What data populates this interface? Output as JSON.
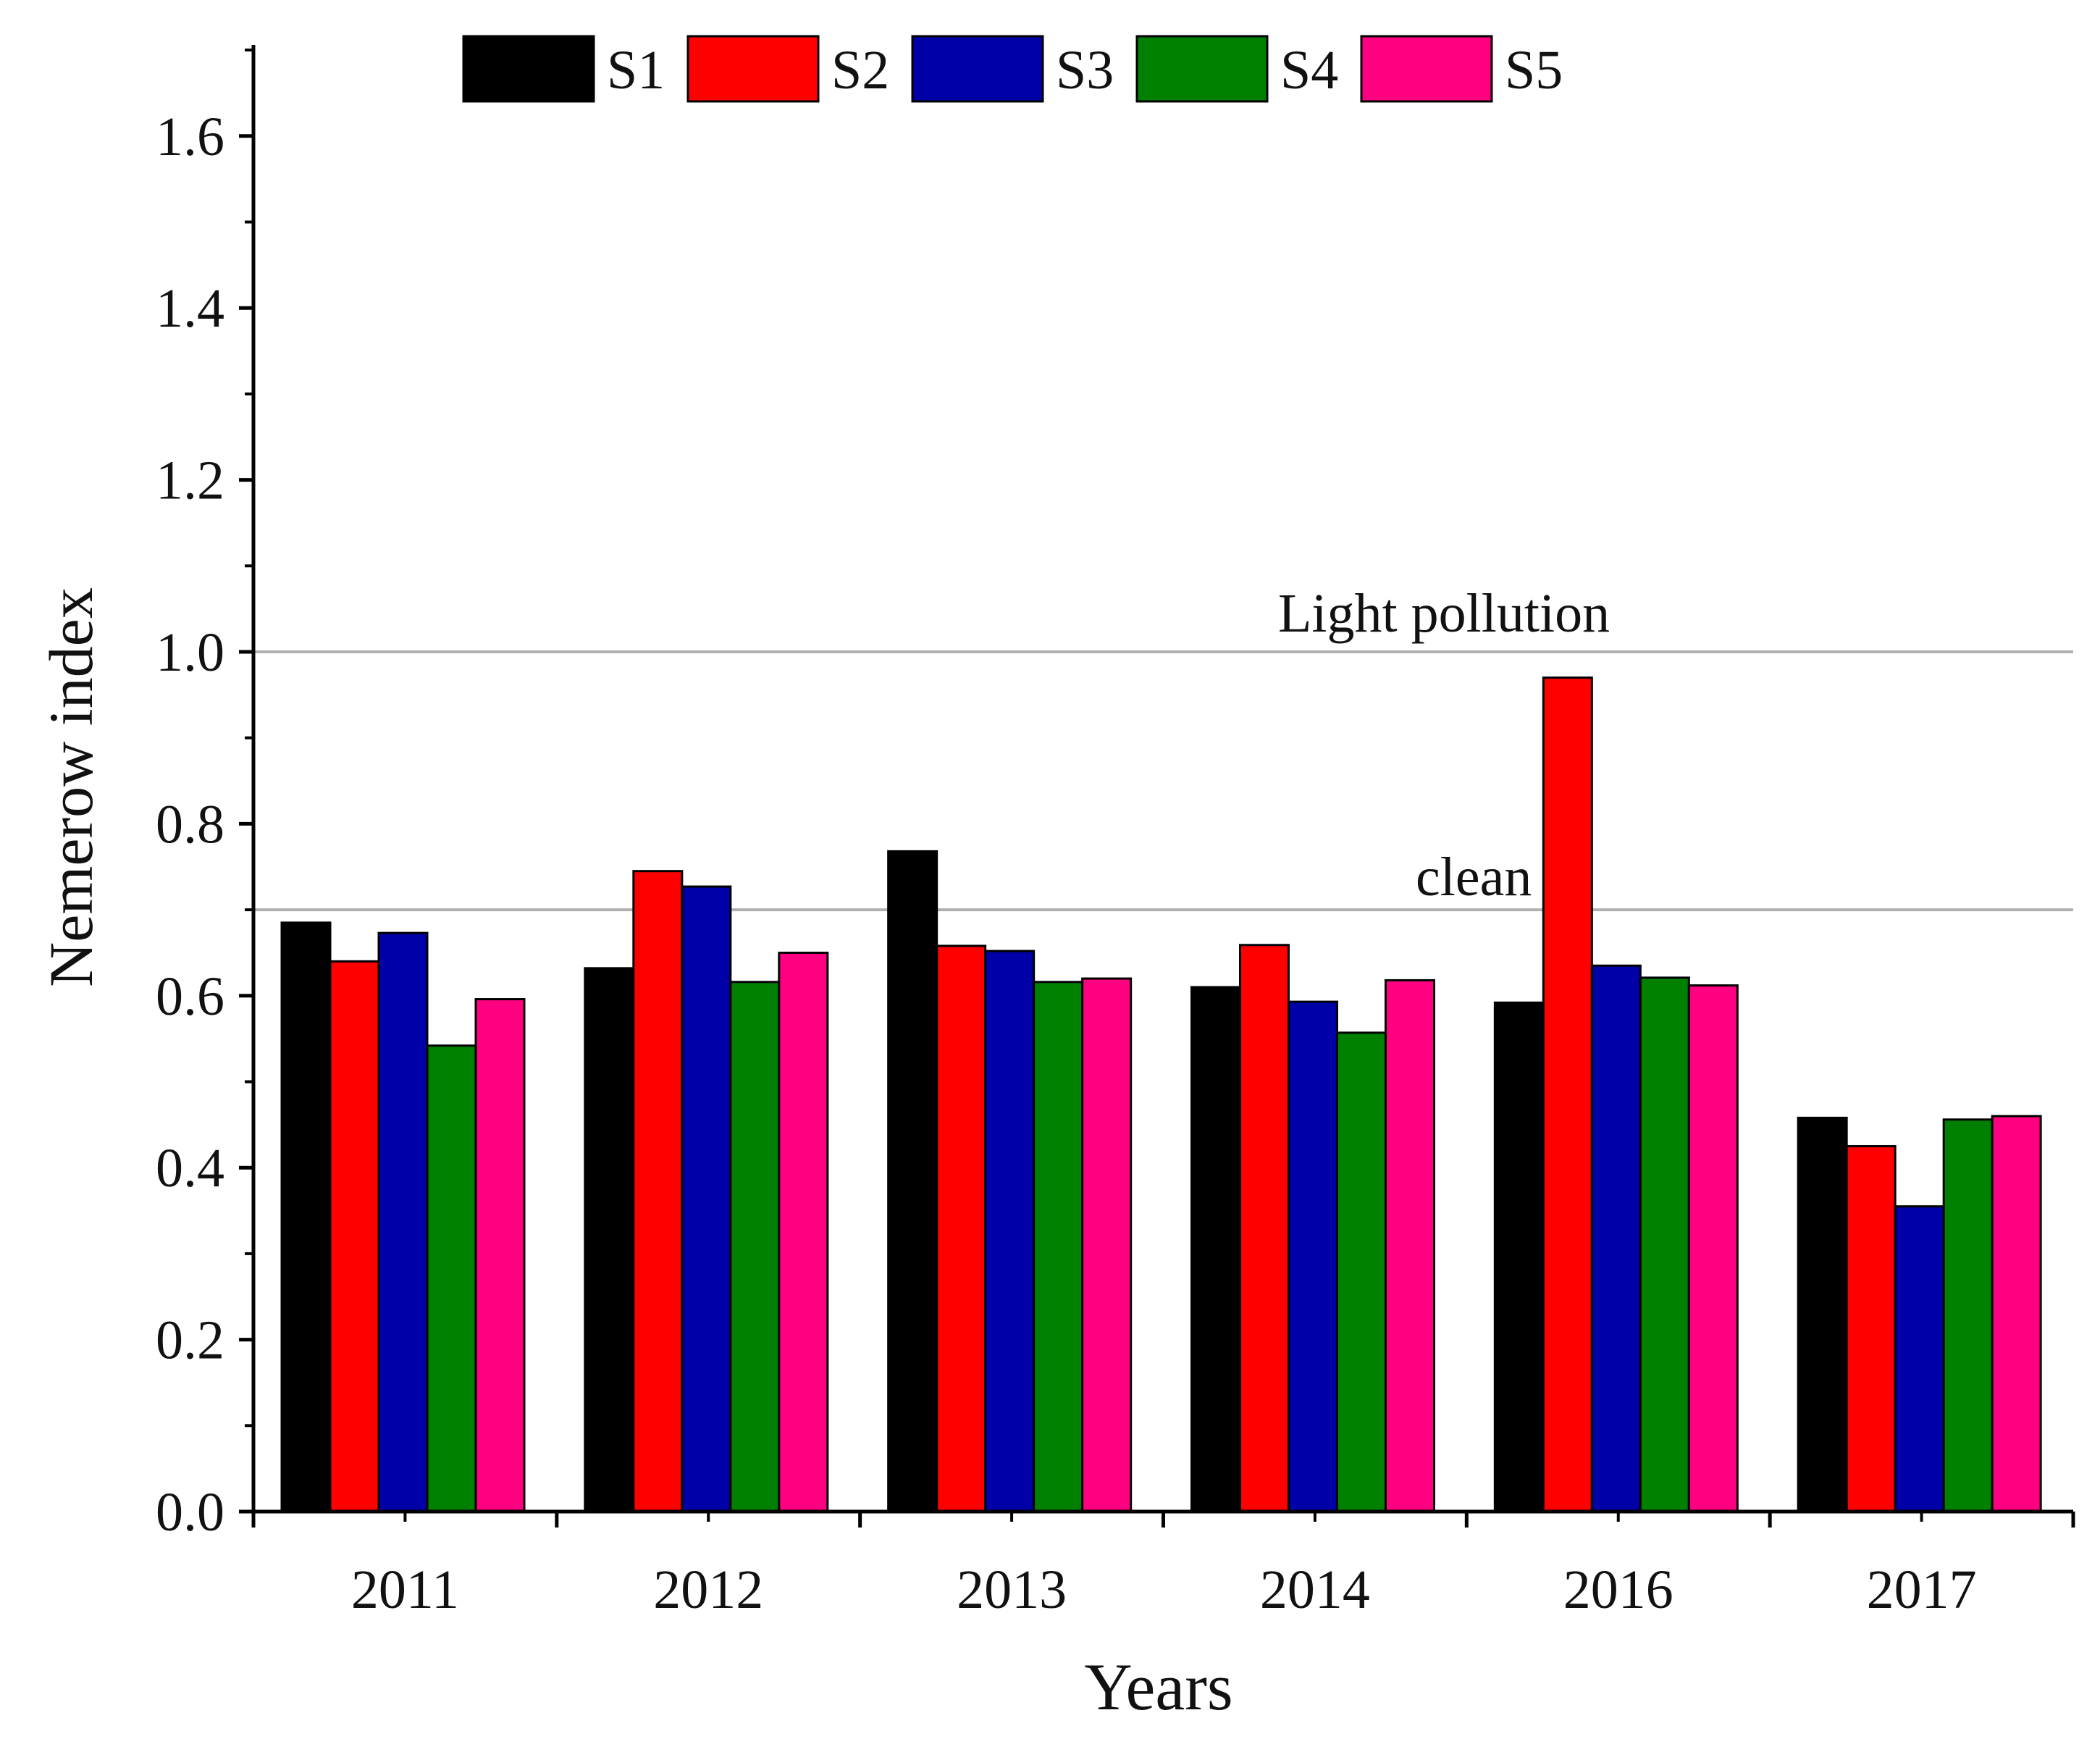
{
  "chart_data": {
    "type": "bar",
    "title": "",
    "xlabel": "Years",
    "ylabel": "Nemerow index",
    "categories": [
      "2011",
      "2012",
      "2013",
      "2014",
      "2016",
      "2017"
    ],
    "ylim": [
      0.0,
      1.7
    ],
    "yticks": [
      0.0,
      0.2,
      0.4,
      0.6,
      0.8,
      1.0,
      1.2,
      1.4,
      1.6
    ],
    "ytick_labels": [
      "0.0",
      "0.2",
      "0.4",
      "0.6",
      "0.8",
      "1.0",
      "1.2",
      "1.4",
      "1.6"
    ],
    "grid": false,
    "legend_position": "top",
    "series": [
      {
        "name": "S1",
        "color": "#000000",
        "values": [
          0.685,
          0.632,
          0.768,
          0.61,
          0.592,
          0.458
        ]
      },
      {
        "name": "S2",
        "color": "#ff0000",
        "values": [
          0.64,
          0.745,
          0.658,
          0.659,
          0.97,
          0.425
        ]
      },
      {
        "name": "S3",
        "color": "#0000a8",
        "values": [
          0.673,
          0.727,
          0.652,
          0.593,
          0.635,
          0.355
        ]
      },
      {
        "name": "S4",
        "color": "#008000",
        "values": [
          0.542,
          0.616,
          0.616,
          0.557,
          0.621,
          0.456
        ]
      },
      {
        "name": "S5",
        "color": "#ff0080",
        "values": [
          0.596,
          0.65,
          0.62,
          0.618,
          0.612,
          0.46
        ]
      }
    ],
    "reference_lines": [
      {
        "label": "Light pollution",
        "value": 1.0,
        "color": "#b0b0b0"
      },
      {
        "label": "clean",
        "value": 0.7,
        "color": "#b0b0b0"
      }
    ]
  }
}
